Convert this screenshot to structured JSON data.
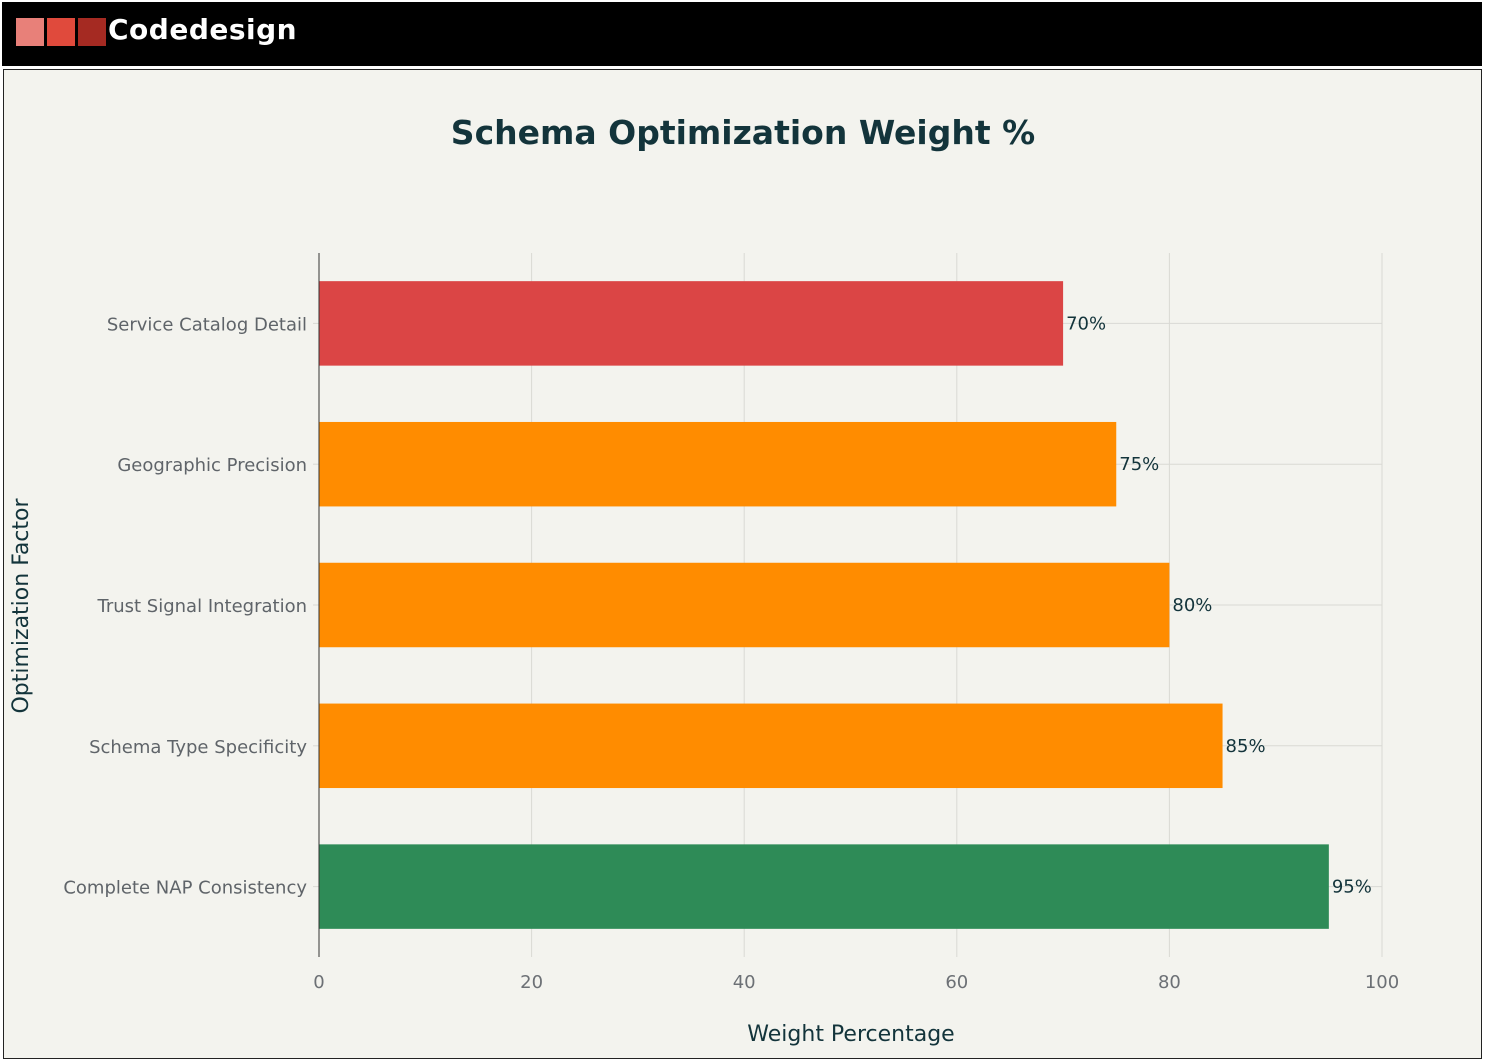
{
  "header": {
    "logo_text": "Codedesign",
    "logo_colors": [
      "#e88079",
      "#e04a3c",
      "#a52a22"
    ]
  },
  "chart_data": {
    "type": "bar",
    "orientation": "horizontal",
    "title": "Schema Optimization Weight %",
    "xlabel": "Weight Percentage",
    "ylabel": "Optimization Factor",
    "categories": [
      "Service Catalog Detail",
      "Geographic Precision",
      "Trust Signal Integration",
      "Schema Type Specificity",
      "Complete NAP Consistency"
    ],
    "values": [
      70,
      75,
      80,
      85,
      95
    ],
    "data_labels": [
      "70%",
      "75%",
      "80%",
      "85%",
      "95%"
    ],
    "bar_colors": [
      "#db4545",
      "#ff8c00",
      "#ff8c00",
      "#ff8c00",
      "#2e8b57"
    ],
    "xlim": [
      0,
      100
    ],
    "x_ticks": [
      0,
      20,
      40,
      60,
      80,
      100
    ],
    "grid": true,
    "legend": "none"
  }
}
